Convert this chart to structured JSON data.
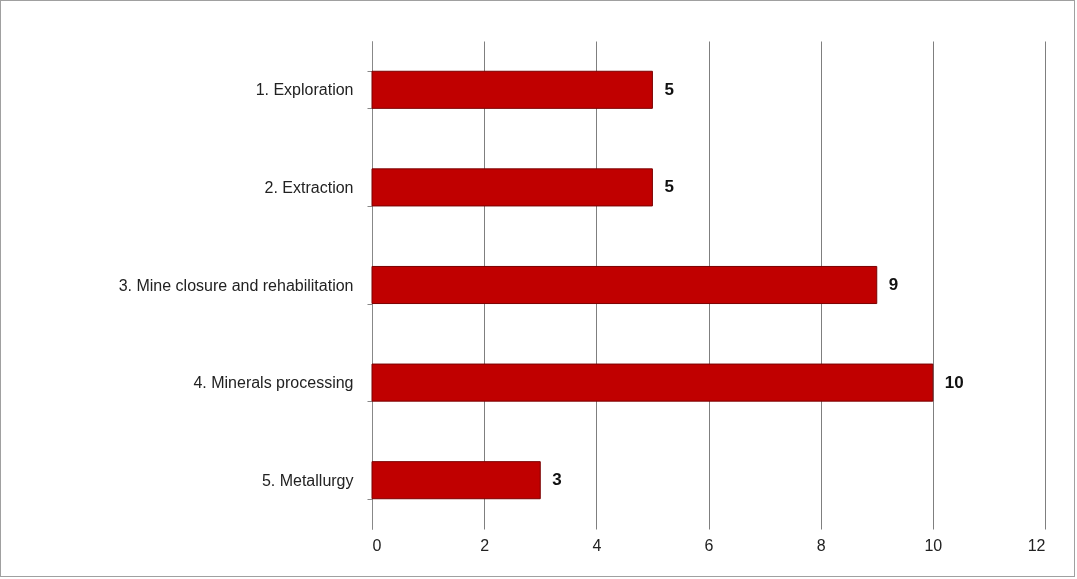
{
  "chart_data": {
    "type": "bar",
    "orientation": "horizontal",
    "categories": [
      "1. Exploration",
      "2. Extraction",
      "3. Mine closure and rehabilitation",
      "4. Minerals processing",
      "5. Metallurgy"
    ],
    "values": [
      5,
      5,
      9,
      10,
      3
    ],
    "color": "#c00000",
    "xlim": [
      0,
      12
    ],
    "xticks": [
      0,
      2,
      4,
      6,
      8,
      10,
      12
    ],
    "grid": "x",
    "data_labels": true
  }
}
